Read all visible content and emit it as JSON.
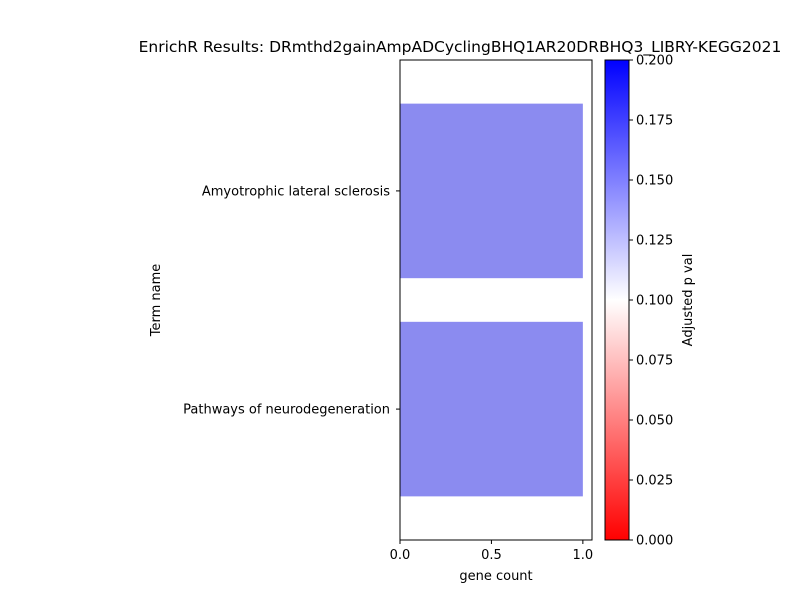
{
  "chart_data": {
    "type": "bar",
    "orientation": "horizontal",
    "title": "EnrichR Results: DRmthd2gainAmpADCyclingBHQ1AR20DRBHQ3_LIBRY-KEGG2021",
    "xlabel": "gene count",
    "ylabel": "Term name",
    "categories": [
      "Amyotrophic lateral sclerosis",
      "Pathways of neurodegeneration"
    ],
    "values": [
      1,
      1
    ],
    "adjusted_p_values": [
      0.15,
      0.15
    ],
    "bar_color": "#8b8bf0",
    "xlim": [
      0,
      1.05
    ],
    "xticks": [
      0.0,
      0.5,
      1.0
    ],
    "xtick_labels": [
      "0.0",
      "0.5",
      "1.0"
    ],
    "colorbar": {
      "label": "Adjusted p val",
      "range": [
        0,
        0.2
      ],
      "ticks": [
        0.0,
        0.025,
        0.05,
        0.075,
        0.1,
        0.125,
        0.15,
        0.175,
        0.2
      ],
      "tick_labels": [
        "0.000",
        "0.025",
        "0.050",
        "0.075",
        "0.100",
        "0.125",
        "0.150",
        "0.175",
        "0.200"
      ],
      "colormap": "bwr_r",
      "color_low": "#ff0000",
      "color_mid": "#ffffff",
      "color_high": "#0000ff"
    },
    "grid": false,
    "legend": "none"
  }
}
